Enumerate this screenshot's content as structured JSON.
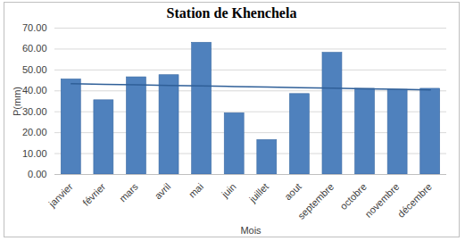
{
  "chart_data": {
    "type": "bar",
    "title": "Station de Khenchela",
    "x_label": "Mois",
    "y_label": "P(mm)",
    "categories": [
      "janvier",
      "février",
      "mars",
      "avril",
      "mai",
      "juin",
      "juillet",
      "aout",
      "septembre",
      "octobre",
      "novembre",
      "décembre"
    ],
    "series": [
      {
        "type": "bar",
        "color": "#4f81bd",
        "values": [
          45.5,
          35.5,
          46.5,
          47.5,
          63.0,
          29.3,
          16.5,
          38.5,
          58.2,
          41.0,
          40.5,
          41.0
        ]
      },
      {
        "type": "line",
        "color": "#2f5f98",
        "line_style": "solid",
        "values": [
          43.38,
          43.11,
          42.85,
          42.58,
          42.32,
          42.05,
          41.79,
          41.52,
          41.26,
          40.99,
          40.73,
          40.46
        ]
      }
    ],
    "ylim": [
      0,
      70
    ],
    "yticks": [
      {
        "value": 0,
        "label": "0.00"
      },
      {
        "value": 10,
        "label": "10.00"
      },
      {
        "value": 20,
        "label": "20.00"
      },
      {
        "value": 30,
        "label": "30.00"
      },
      {
        "value": 40,
        "label": "40.00"
      },
      {
        "value": 50,
        "label": "50.00"
      },
      {
        "value": 60,
        "label": "60.00"
      },
      {
        "value": 70,
        "label": "70.00"
      }
    ],
    "grid": true
  }
}
